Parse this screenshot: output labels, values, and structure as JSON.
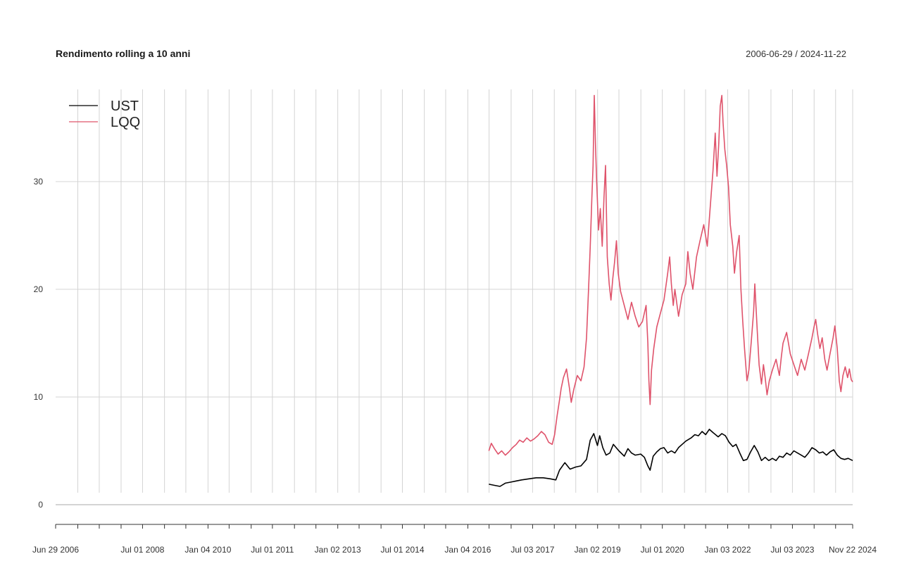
{
  "header": {
    "title": "Rendimento rolling a 10 anni",
    "date_range": "2006-06-29 / 2024-11-22"
  },
  "chart_data": {
    "type": "line",
    "title": "Rendimento rolling a 10 anni",
    "subtitle": "2006-06-29 / 2024-11-22",
    "xlabel": "",
    "ylabel": "",
    "xlim": [
      "2006-06-29",
      "2024-11-22"
    ],
    "ylim": [
      -2,
      38
    ],
    "y_ticks": [
      0,
      10,
      20,
      30
    ],
    "x_tick_labels": [
      {
        "date": "2006-06-29",
        "label": "Jun 29 2006"
      },
      {
        "date": "2008-07-01",
        "label": "Jul 01 2008"
      },
      {
        "date": "2010-01-04",
        "label": "Jan 04 2010"
      },
      {
        "date": "2011-07-01",
        "label": "Jul 01 2011"
      },
      {
        "date": "2013-01-02",
        "label": "Jan 02 2013"
      },
      {
        "date": "2014-07-01",
        "label": "Jul 01 2014"
      },
      {
        "date": "2016-01-04",
        "label": "Jan 04 2016"
      },
      {
        "date": "2017-07-03",
        "label": "Jul 03 2017"
      },
      {
        "date": "2019-01-02",
        "label": "Jan 02 2019"
      },
      {
        "date": "2020-07-01",
        "label": "Jul 01 2020"
      },
      {
        "date": "2022-01-03",
        "label": "Jan 03 2022"
      },
      {
        "date": "2023-07-03",
        "label": "Jul 03 2023"
      },
      {
        "date": "2024-11-22",
        "label": "Nov 22 2024"
      }
    ],
    "gridline_dates": [
      "2007-01-02",
      "2007-07-02",
      "2008-01-02",
      "2008-07-01",
      "2009-01-02",
      "2009-07-01",
      "2010-01-04",
      "2010-07-01",
      "2011-01-03",
      "2011-07-01",
      "2012-01-03",
      "2012-07-02",
      "2013-01-02",
      "2013-07-01",
      "2014-01-02",
      "2014-07-01",
      "2015-01-02",
      "2015-07-01",
      "2016-01-04",
      "2016-07-01",
      "2017-01-03",
      "2017-07-03",
      "2018-01-02",
      "2018-07-02",
      "2019-01-02",
      "2019-07-01",
      "2020-01-02",
      "2020-07-01",
      "2021-01-04",
      "2021-07-01",
      "2022-01-03",
      "2022-07-01",
      "2023-01-03",
      "2023-07-03",
      "2024-01-02",
      "2024-07-01",
      "2024-11-22"
    ],
    "grid": true,
    "legend_position": "top-left",
    "series": [
      {
        "name": "UST",
        "color": "#000000",
        "points": [
          [
            "2016-06-29",
            1.9
          ],
          [
            "2016-08-15",
            1.8
          ],
          [
            "2016-10-01",
            1.7
          ],
          [
            "2016-11-15",
            2.0
          ],
          [
            "2017-01-01",
            2.1
          ],
          [
            "2017-02-15",
            2.2
          ],
          [
            "2017-04-01",
            2.3
          ],
          [
            "2017-06-01",
            2.4
          ],
          [
            "2017-08-01",
            2.5
          ],
          [
            "2017-10-01",
            2.5
          ],
          [
            "2017-12-01",
            2.4
          ],
          [
            "2018-01-15",
            2.3
          ],
          [
            "2018-02-15",
            3.2
          ],
          [
            "2018-04-01",
            3.9
          ],
          [
            "2018-05-15",
            3.3
          ],
          [
            "2018-07-01",
            3.5
          ],
          [
            "2018-08-15",
            3.6
          ],
          [
            "2018-10-01",
            4.2
          ],
          [
            "2018-11-01",
            6.0
          ],
          [
            "2018-12-01",
            6.6
          ],
          [
            "2019-01-01",
            5.5
          ],
          [
            "2019-01-20",
            6.4
          ],
          [
            "2019-02-15",
            5.3
          ],
          [
            "2019-03-15",
            4.6
          ],
          [
            "2019-04-15",
            4.8
          ],
          [
            "2019-05-15",
            5.6
          ],
          [
            "2019-07-01",
            5.0
          ],
          [
            "2019-08-15",
            4.5
          ],
          [
            "2019-09-15",
            5.2
          ],
          [
            "2019-10-15",
            4.8
          ],
          [
            "2019-11-15",
            4.6
          ],
          [
            "2020-01-01",
            4.7
          ],
          [
            "2020-02-01",
            4.4
          ],
          [
            "2020-03-01",
            3.6
          ],
          [
            "2020-03-20",
            3.2
          ],
          [
            "2020-04-15",
            4.5
          ],
          [
            "2020-05-15",
            4.9
          ],
          [
            "2020-06-15",
            5.2
          ],
          [
            "2020-07-15",
            5.3
          ],
          [
            "2020-08-15",
            4.8
          ],
          [
            "2020-09-15",
            5.0
          ],
          [
            "2020-10-15",
            4.8
          ],
          [
            "2020-11-15",
            5.3
          ],
          [
            "2020-12-15",
            5.6
          ],
          [
            "2021-01-15",
            5.9
          ],
          [
            "2021-03-01",
            6.2
          ],
          [
            "2021-04-01",
            6.5
          ],
          [
            "2021-05-01",
            6.4
          ],
          [
            "2021-06-01",
            6.8
          ],
          [
            "2021-07-01",
            6.5
          ],
          [
            "2021-08-01",
            7.0
          ],
          [
            "2021-09-01",
            6.7
          ],
          [
            "2021-10-15",
            6.3
          ],
          [
            "2021-11-15",
            6.6
          ],
          [
            "2021-12-15",
            6.4
          ],
          [
            "2022-01-15",
            5.8
          ],
          [
            "2022-02-15",
            5.4
          ],
          [
            "2022-03-15",
            5.6
          ],
          [
            "2022-04-15",
            4.8
          ],
          [
            "2022-05-15",
            4.1
          ],
          [
            "2022-06-15",
            4.2
          ],
          [
            "2022-07-15",
            4.9
          ],
          [
            "2022-08-15",
            5.5
          ],
          [
            "2022-09-15",
            4.9
          ],
          [
            "2022-10-15",
            4.1
          ],
          [
            "2022-11-15",
            4.4
          ],
          [
            "2022-12-15",
            4.1
          ],
          [
            "2023-01-15",
            4.3
          ],
          [
            "2023-02-15",
            4.1
          ],
          [
            "2023-03-15",
            4.5
          ],
          [
            "2023-04-15",
            4.4
          ],
          [
            "2023-05-15",
            4.8
          ],
          [
            "2023-06-15",
            4.6
          ],
          [
            "2023-07-15",
            5.0
          ],
          [
            "2023-08-15",
            4.8
          ],
          [
            "2023-09-15",
            4.6
          ],
          [
            "2023-10-15",
            4.4
          ],
          [
            "2023-11-15",
            4.8
          ],
          [
            "2023-12-15",
            5.3
          ],
          [
            "2024-01-15",
            5.1
          ],
          [
            "2024-02-15",
            4.8
          ],
          [
            "2024-03-15",
            4.9
          ],
          [
            "2024-04-15",
            4.6
          ],
          [
            "2024-05-15",
            4.9
          ],
          [
            "2024-06-15",
            5.1
          ],
          [
            "2024-07-15",
            4.6
          ],
          [
            "2024-08-15",
            4.3
          ],
          [
            "2024-09-15",
            4.2
          ],
          [
            "2024-10-15",
            4.3
          ],
          [
            "2024-11-22",
            4.1
          ]
        ]
      },
      {
        "name": "LQQ",
        "color": "#DF536B",
        "points": [
          [
            "2016-06-29",
            5.0
          ],
          [
            "2016-07-20",
            5.7
          ],
          [
            "2016-08-15",
            5.2
          ],
          [
            "2016-09-15",
            4.7
          ],
          [
            "2016-10-15",
            5.0
          ],
          [
            "2016-11-15",
            4.6
          ],
          [
            "2016-12-15",
            4.9
          ],
          [
            "2017-01-15",
            5.3
          ],
          [
            "2017-02-15",
            5.6
          ],
          [
            "2017-03-15",
            6.0
          ],
          [
            "2017-04-15",
            5.8
          ],
          [
            "2017-05-15",
            6.2
          ],
          [
            "2017-06-15",
            5.9
          ],
          [
            "2017-07-15",
            6.1
          ],
          [
            "2017-08-15",
            6.4
          ],
          [
            "2017-09-15",
            6.8
          ],
          [
            "2017-10-15",
            6.5
          ],
          [
            "2017-11-15",
            5.8
          ],
          [
            "2017-12-15",
            5.6
          ],
          [
            "2018-01-05",
            6.5
          ],
          [
            "2018-01-25",
            8.2
          ],
          [
            "2018-02-15",
            9.7
          ],
          [
            "2018-03-01",
            10.8
          ],
          [
            "2018-03-20",
            11.8
          ],
          [
            "2018-04-15",
            12.6
          ],
          [
            "2018-05-10",
            10.8
          ],
          [
            "2018-05-25",
            9.5
          ],
          [
            "2018-06-15",
            10.7
          ],
          [
            "2018-07-15",
            12.0
          ],
          [
            "2018-08-15",
            11.5
          ],
          [
            "2018-09-10",
            12.8
          ],
          [
            "2018-10-01",
            15.5
          ],
          [
            "2018-10-20",
            20.5
          ],
          [
            "2018-11-01",
            24.0
          ],
          [
            "2018-11-15",
            28.5
          ],
          [
            "2018-11-25",
            31.5
          ],
          [
            "2018-12-05",
            38.0
          ],
          [
            "2018-12-15",
            33.5
          ],
          [
            "2018-12-25",
            30.0
          ],
          [
            "2019-01-10",
            25.5
          ],
          [
            "2019-01-25",
            27.5
          ],
          [
            "2019-02-10",
            24.0
          ],
          [
            "2019-02-25",
            28.5
          ],
          [
            "2019-03-10",
            31.5
          ],
          [
            "2019-03-25",
            23.0
          ],
          [
            "2019-04-10",
            20.5
          ],
          [
            "2019-04-25",
            19.0
          ],
          [
            "2019-05-10",
            21.0
          ],
          [
            "2019-05-25",
            22.5
          ],
          [
            "2019-06-10",
            24.5
          ],
          [
            "2019-06-25",
            21.5
          ],
          [
            "2019-07-15",
            19.8
          ],
          [
            "2019-08-15",
            18.5
          ],
          [
            "2019-09-15",
            17.2
          ],
          [
            "2019-10-15",
            18.8
          ],
          [
            "2019-11-15",
            17.5
          ],
          [
            "2019-12-15",
            16.5
          ],
          [
            "2020-01-15",
            17.0
          ],
          [
            "2020-02-15",
            18.5
          ],
          [
            "2020-03-01",
            15.0
          ],
          [
            "2020-03-10",
            11.5
          ],
          [
            "2020-03-20",
            9.3
          ],
          [
            "2020-04-01",
            12.5
          ],
          [
            "2020-04-20",
            14.5
          ],
          [
            "2020-05-15",
            16.5
          ],
          [
            "2020-06-15",
            17.8
          ],
          [
            "2020-07-15",
            19.0
          ],
          [
            "2020-08-15",
            21.5
          ],
          [
            "2020-09-01",
            23.0
          ],
          [
            "2020-09-15",
            20.5
          ],
          [
            "2020-10-01",
            18.5
          ],
          [
            "2020-10-15",
            20.0
          ],
          [
            "2020-11-15",
            17.5
          ],
          [
            "2020-12-15",
            19.5
          ],
          [
            "2021-01-15",
            20.5
          ],
          [
            "2021-02-01",
            23.5
          ],
          [
            "2021-02-20",
            21.5
          ],
          [
            "2021-03-15",
            20.0
          ],
          [
            "2021-04-15",
            23.0
          ],
          [
            "2021-05-15",
            24.5
          ],
          [
            "2021-06-15",
            26.0
          ],
          [
            "2021-07-15",
            24.0
          ],
          [
            "2021-08-15",
            28.5
          ],
          [
            "2021-09-01",
            31.0
          ],
          [
            "2021-09-20",
            34.5
          ],
          [
            "2021-10-05",
            30.5
          ],
          [
            "2021-10-20",
            33.5
          ],
          [
            "2021-11-01",
            37.0
          ],
          [
            "2021-11-15",
            38.0
          ],
          [
            "2021-11-25",
            35.5
          ],
          [
            "2021-12-10",
            33.0
          ],
          [
            "2021-12-25",
            31.5
          ],
          [
            "2022-01-10",
            29.5
          ],
          [
            "2022-01-25",
            26.0
          ],
          [
            "2022-02-15",
            24.0
          ],
          [
            "2022-03-01",
            21.5
          ],
          [
            "2022-03-20",
            23.5
          ],
          [
            "2022-04-10",
            25.0
          ],
          [
            "2022-04-25",
            20.0
          ],
          [
            "2022-05-10",
            17.0
          ],
          [
            "2022-05-25",
            14.5
          ],
          [
            "2022-06-15",
            11.5
          ],
          [
            "2022-07-01",
            12.5
          ],
          [
            "2022-07-20",
            15.0
          ],
          [
            "2022-08-10",
            18.0
          ],
          [
            "2022-08-20",
            20.5
          ],
          [
            "2022-09-10",
            16.0
          ],
          [
            "2022-09-25",
            13.0
          ],
          [
            "2022-10-15",
            11.2
          ],
          [
            "2022-11-01",
            13.0
          ],
          [
            "2022-11-15",
            11.8
          ],
          [
            "2022-12-01",
            10.2
          ],
          [
            "2022-12-20",
            11.5
          ],
          [
            "2023-01-15",
            12.5
          ],
          [
            "2023-02-15",
            13.5
          ],
          [
            "2023-03-15",
            12.0
          ],
          [
            "2023-04-01",
            13.8
          ],
          [
            "2023-04-15",
            15.0
          ],
          [
            "2023-05-15",
            16.0
          ],
          [
            "2023-06-15",
            14.0
          ],
          [
            "2023-07-15",
            13.0
          ],
          [
            "2023-08-15",
            12.0
          ],
          [
            "2023-09-15",
            13.5
          ],
          [
            "2023-10-15",
            12.5
          ],
          [
            "2023-11-15",
            14.0
          ],
          [
            "2023-12-15",
            15.5
          ],
          [
            "2024-01-01",
            16.5
          ],
          [
            "2024-01-15",
            17.2
          ],
          [
            "2024-02-01",
            15.8
          ],
          [
            "2024-02-20",
            14.5
          ],
          [
            "2024-03-10",
            15.5
          ],
          [
            "2024-04-01",
            13.5
          ],
          [
            "2024-04-20",
            12.5
          ],
          [
            "2024-05-15",
            14.0
          ],
          [
            "2024-06-10",
            15.5
          ],
          [
            "2024-06-25",
            16.6
          ],
          [
            "2024-07-15",
            14.5
          ],
          [
            "2024-08-01",
            11.5
          ],
          [
            "2024-08-15",
            10.5
          ],
          [
            "2024-09-01",
            12.0
          ],
          [
            "2024-09-20",
            12.8
          ],
          [
            "2024-10-10",
            11.8
          ],
          [
            "2024-10-25",
            12.6
          ],
          [
            "2024-11-10",
            11.6
          ],
          [
            "2024-11-22",
            11.4
          ]
        ]
      }
    ]
  }
}
